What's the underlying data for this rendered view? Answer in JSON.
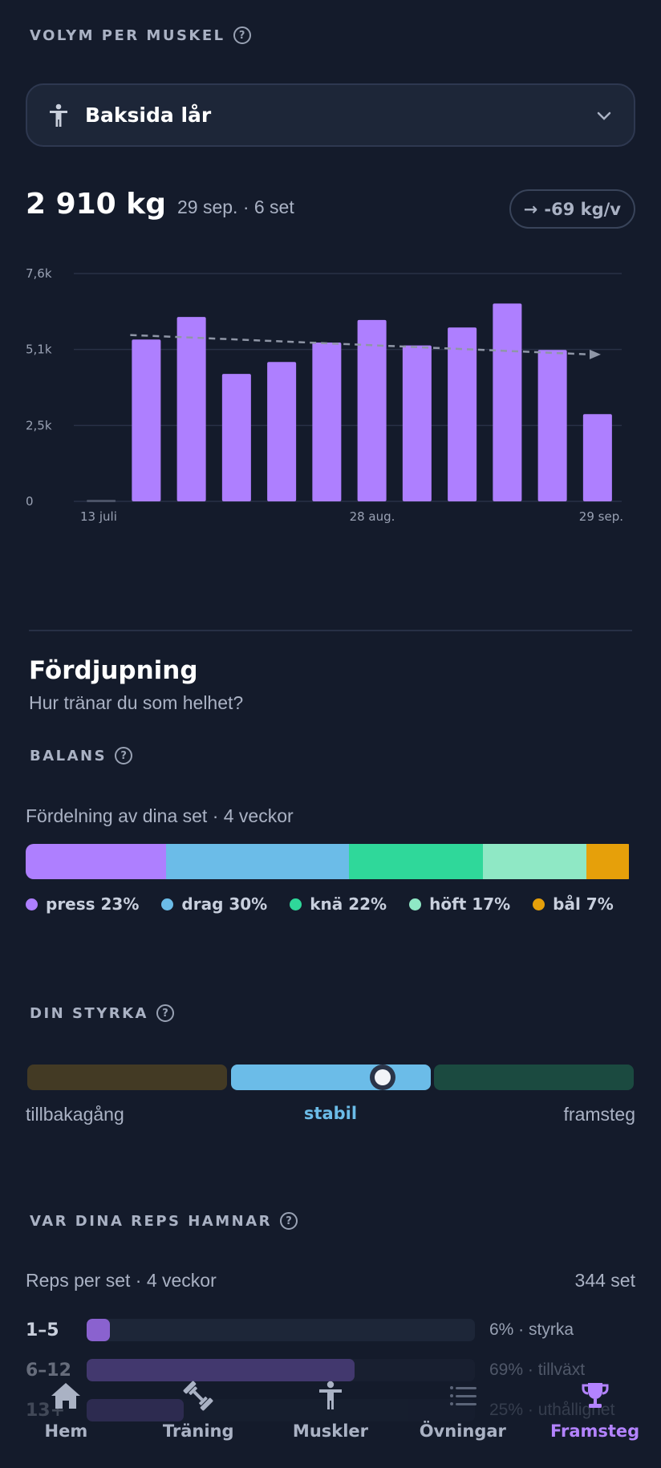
{
  "volume": {
    "section_label": "VOLYM PER MUSKEL",
    "help_glyph": "?",
    "selected_muscle": "Baksida lår",
    "value": "2 910 kg",
    "detail": "29 sep. · 6 set",
    "trend_arrow": "→",
    "trend": "-69 kg/v"
  },
  "chart_data": {
    "type": "bar",
    "y_tick_labels": [
      "7,6k",
      "5,1k",
      "2,5k",
      "0"
    ],
    "ylim": [
      0,
      7600
    ],
    "x_tick_labels": [
      "13 juli",
      "28 aug.",
      "29 sep."
    ],
    "values": [
      0,
      5400,
      6150,
      4250,
      4650,
      5300,
      6050,
      5200,
      5800,
      6600,
      5050,
      2910
    ],
    "trend_line": {
      "start": 5550,
      "end": 4900,
      "style": "dashed"
    },
    "bar_color": "#ae7fff",
    "grid": true
  },
  "deep": {
    "title": "Fördjupning",
    "subtitle": "Hur tränar du som helhet?"
  },
  "balance": {
    "section_label": "BALANS",
    "help_glyph": "?",
    "caption": "Fördelning av dina set · 4 veckor",
    "segments": [
      {
        "label": "press 23%",
        "share": 0.23,
        "color": "#ae7fff"
      },
      {
        "label": "drag 30%",
        "share": 0.3,
        "color": "#6bbce8"
      },
      {
        "label": "knä 22%",
        "share": 0.22,
        "color": "#2fd89a"
      },
      {
        "label": "höft 17%",
        "share": 0.17,
        "color": "#8fe8c5"
      },
      {
        "label": "bål 7%",
        "share": 0.07,
        "color": "#e6a00a"
      }
    ]
  },
  "strength": {
    "section_label": "DIN STYRKA",
    "help_glyph": "?",
    "left_label": "tillbakagång",
    "middle_label": "stabil",
    "right_label": "framsteg",
    "marker_position": 0.76,
    "colors": {
      "left": "#433a24",
      "middle": "#6bbce8",
      "right": "#1b4a40",
      "active_text": "#6bbce8"
    }
  },
  "reps": {
    "section_label": "VAR DINA REPS HAMNAR",
    "help_glyph": "?",
    "caption": "Reps per set · 4 veckor",
    "total": "344 set",
    "rows": [
      {
        "label": "1–5",
        "share": 0.06,
        "note": "6% · styrka"
      },
      {
        "label": "6–12",
        "share": 0.69,
        "note": "69% · tillväxt"
      },
      {
        "label": "13+",
        "share": 0.25,
        "note": "25% · uthållighet"
      }
    ]
  },
  "tabs": [
    {
      "label": "Hem",
      "icon": "home-icon"
    },
    {
      "label": "Träning",
      "icon": "dumbbell-icon"
    },
    {
      "label": "Muskler",
      "icon": "person-icon"
    },
    {
      "label": "Övningar",
      "icon": "list-icon"
    },
    {
      "label": "Framsteg",
      "icon": "trophy-icon",
      "active": true
    }
  ]
}
